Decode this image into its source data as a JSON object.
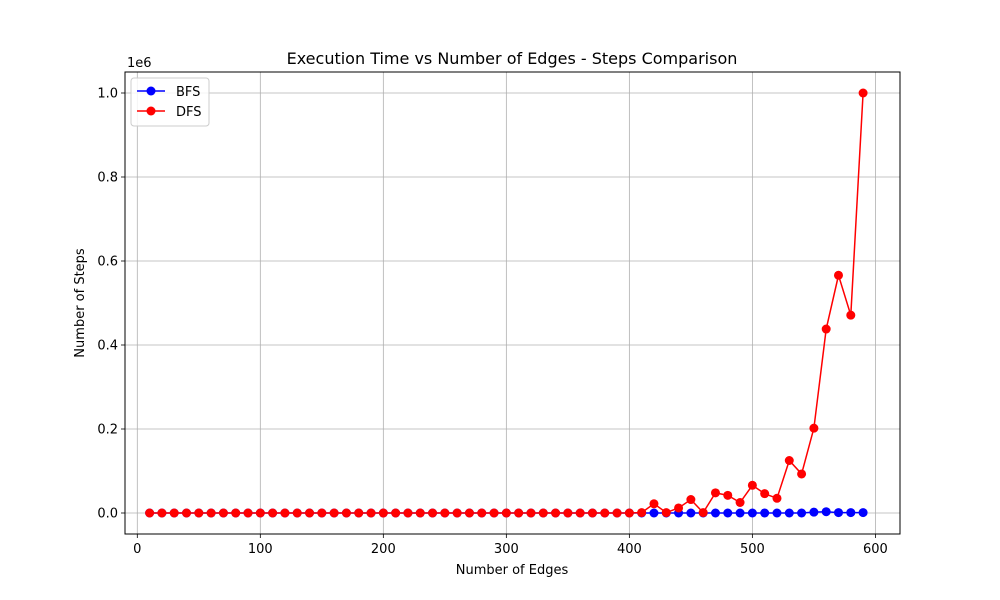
{
  "chart_data": {
    "type": "line",
    "title": "Execution Time vs Number of Edges - Steps Comparison",
    "xlabel": "Number of Edges",
    "ylabel": "Number of Steps",
    "y_offset_label": "1e6",
    "xlim": [
      -10,
      620
    ],
    "ylim": [
      -0.05,
      1.05
    ],
    "x_ticks": [
      0,
      100,
      200,
      300,
      400,
      500,
      600
    ],
    "x_tick_labels": [
      "0",
      "100",
      "200",
      "300",
      "400",
      "500",
      "600"
    ],
    "y_ticks": [
      0.0,
      0.2,
      0.4,
      0.6,
      0.8,
      1.0
    ],
    "y_tick_labels": [
      "0.0",
      "0.2",
      "0.4",
      "0.6",
      "0.8",
      "1.0"
    ],
    "grid": true,
    "legend_position": "top-left",
    "x": [
      10,
      20,
      30,
      40,
      50,
      60,
      70,
      80,
      90,
      100,
      110,
      120,
      130,
      140,
      150,
      160,
      170,
      180,
      190,
      200,
      210,
      220,
      230,
      240,
      250,
      260,
      270,
      280,
      290,
      300,
      310,
      320,
      330,
      340,
      350,
      360,
      370,
      380,
      390,
      400,
      410,
      420,
      430,
      440,
      450,
      460,
      470,
      480,
      490,
      500,
      510,
      520,
      530,
      540,
      550,
      560,
      570,
      580,
      590
    ],
    "series": [
      {
        "name": "BFS",
        "color": "#0000ff",
        "values": [
          0,
          0,
          0,
          0,
          0,
          0,
          0,
          0,
          0,
          0,
          0,
          0,
          0,
          0,
          0,
          0,
          0,
          0,
          0,
          0,
          0,
          0,
          0,
          0,
          0,
          0,
          0,
          0,
          0,
          0,
          0,
          0,
          0,
          0,
          0,
          0,
          0,
          0,
          0,
          0,
          0,
          0,
          0,
          0,
          0,
          0,
          0,
          0,
          0,
          0,
          0,
          0,
          0,
          0,
          0.002,
          0.003,
          0.001,
          0.001,
          0.001
        ]
      },
      {
        "name": "DFS",
        "color": "#ff0000",
        "values": [
          0,
          0,
          0,
          0,
          0,
          0,
          0,
          0,
          0,
          0,
          0,
          0,
          0,
          0,
          0,
          0,
          0,
          0,
          0,
          0,
          0,
          0,
          0,
          0,
          0,
          0,
          0,
          0,
          0,
          0,
          0,
          0,
          0,
          0,
          0,
          0,
          0,
          0,
          0,
          0,
          0.001,
          0.022,
          0.001,
          0.012,
          0.032,
          0.001,
          0.048,
          0.042,
          0.025,
          0.066,
          0.046,
          0.035,
          0.125,
          0.093,
          0.202,
          0.438,
          0.566,
          0.471,
          1.0
        ]
      }
    ]
  }
}
